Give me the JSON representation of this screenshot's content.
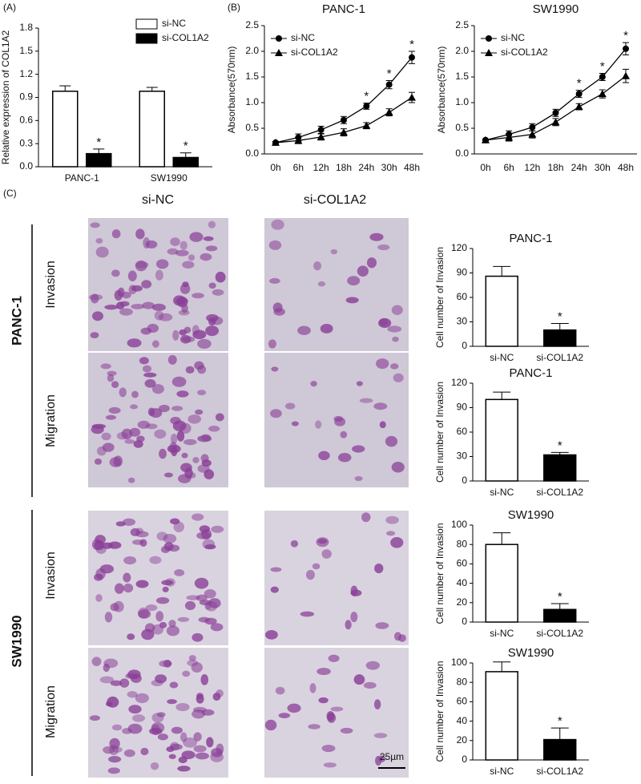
{
  "panel_labels": [
    "(A)",
    "(B)",
    "(C)"
  ],
  "panel_c": {
    "columns": [
      "si-NC",
      "si-COL1A2"
    ],
    "groups": [
      {
        "label": "PANC-1",
        "rows": [
          "Invasion",
          "Migration"
        ]
      },
      {
        "label": "SW1990",
        "rows": [
          "Invasion",
          "Migration"
        ]
      }
    ],
    "scale_bar": "25µm"
  },
  "chart_data": [
    {
      "type": "bar",
      "y_label": "Relative expression of COL1A2",
      "categories": [
        "PANC-1",
        "SW1990"
      ],
      "series": [
        {
          "name": "si-NC",
          "color": "#ffffff",
          "values": [
            0.98,
            0.98
          ],
          "errors": [
            0.07,
            0.05
          ],
          "annotations": [
            null,
            null
          ]
        },
        {
          "name": "si-COL1A2",
          "color": "#000000",
          "values": [
            0.17,
            0.12
          ],
          "errors": [
            0.06,
            0.06
          ],
          "annotations": [
            "*",
            "*"
          ]
        }
      ],
      "ylim": [
        0,
        1.8
      ],
      "yticks": [
        {
          "value": 0,
          "label": "0.0"
        },
        0.3,
        0.6,
        0.9,
        1.2,
        1.5,
        1.8
      ],
      "legend": "upper right"
    },
    {
      "type": "line",
      "title": "PANC-1",
      "y_label": "Absorbance(570nm)",
      "categories": [
        "0h",
        "6h",
        "12h",
        "18h",
        "24h",
        "30h",
        "48h"
      ],
      "series": [
        {
          "name": "si-NC",
          "color": "#000000",
          "marker": "circle",
          "values": [
            0.22,
            0.32,
            0.47,
            0.66,
            0.93,
            1.35,
            1.88
          ],
          "errors": [
            0.02,
            0.07,
            0.07,
            0.07,
            0.06,
            0.08,
            0.12
          ],
          "annotations": [
            null,
            null,
            null,
            null,
            "*",
            "*",
            "*"
          ]
        },
        {
          "name": "si-COL1A2",
          "color": "#000000",
          "marker": "triangle",
          "values": [
            0.22,
            0.26,
            0.33,
            0.42,
            0.55,
            0.81,
            1.1
          ],
          "errors": [
            0.02,
            0.06,
            0.06,
            0.07,
            0.06,
            0.07,
            0.1
          ],
          "annotations": [
            null,
            null,
            null,
            null,
            null,
            null,
            null
          ]
        }
      ],
      "ylim": [
        0,
        2.5
      ],
      "yticks": [
        {
          "value": 0,
          "label": "0.0"
        },
        0.5,
        {
          "value": 1,
          "label": "1.0"
        },
        1.5,
        {
          "value": 2,
          "label": "2.0"
        },
        2.5
      ],
      "legend": "upper left"
    },
    {
      "type": "line",
      "title": "SW1990",
      "y_label": "Absorbance(570nm)",
      "categories": [
        "0h",
        "6h",
        "12h",
        "18h",
        "24h",
        "30h",
        "48h"
      ],
      "series": [
        {
          "name": "si-NC",
          "color": "#000000",
          "marker": "circle",
          "values": [
            0.27,
            0.38,
            0.52,
            0.8,
            1.17,
            1.5,
            2.05
          ],
          "errors": [
            0.02,
            0.07,
            0.07,
            0.07,
            0.07,
            0.07,
            0.12
          ],
          "annotations": [
            null,
            null,
            null,
            null,
            "*",
            "*",
            "*"
          ]
        },
        {
          "name": "si-COL1A2",
          "color": "#000000",
          "marker": "triangle",
          "values": [
            0.27,
            0.32,
            0.38,
            0.62,
            0.92,
            1.17,
            1.52
          ],
          "errors": [
            0.02,
            0.07,
            0.07,
            0.07,
            0.06,
            0.08,
            0.13
          ],
          "annotations": [
            null,
            null,
            null,
            null,
            null,
            null,
            null
          ]
        }
      ],
      "ylim": [
        0,
        2.5
      ],
      "yticks": [
        {
          "value": 0,
          "label": "0.0"
        },
        0.5,
        {
          "value": 1,
          "label": "1.0"
        },
        1.5,
        {
          "value": 2,
          "label": "2.0"
        },
        2.5
      ],
      "legend": "upper left"
    },
    {
      "type": "bar",
      "title": "PANC-1",
      "y_label": "Cell number of Invasion",
      "categories": [
        "si-NC",
        "si-COL1A2"
      ],
      "values": [
        86,
        20
      ],
      "errors": [
        12,
        8
      ],
      "colors": [
        "#ffffff",
        "#000000"
      ],
      "annotations": [
        null,
        "*"
      ],
      "ylim": [
        0,
        120
      ],
      "yticks": [
        0,
        30,
        60,
        90,
        120
      ]
    },
    {
      "type": "bar",
      "title": "PANC-1",
      "y_label": "Cell number of Invasion",
      "categories": [
        "si-NC",
        "si-COL1A2"
      ],
      "values": [
        100,
        32
      ],
      "errors": [
        9,
        3
      ],
      "colors": [
        "#ffffff",
        "#000000"
      ],
      "annotations": [
        null,
        "*"
      ],
      "ylim": [
        0,
        120
      ],
      "yticks": [
        0,
        30,
        60,
        90,
        120
      ]
    },
    {
      "type": "bar",
      "title": "SW1990",
      "y_label": "Cell number of Invasion",
      "categories": [
        "si-NC",
        "si-COL1A2"
      ],
      "values": [
        80,
        13
      ],
      "errors": [
        12,
        6
      ],
      "colors": [
        "#ffffff",
        "#000000"
      ],
      "annotations": [
        null,
        "*"
      ],
      "ylim": [
        0,
        100
      ],
      "yticks": [
        0,
        20,
        40,
        60,
        80,
        100
      ]
    },
    {
      "type": "bar",
      "title": "SW1990",
      "y_label": "Cell number of Invasion",
      "categories": [
        "si-NC",
        "si-COL1A2"
      ],
      "values": [
        91,
        21
      ],
      "errors": [
        10,
        12
      ],
      "colors": [
        "#ffffff",
        "#000000"
      ],
      "annotations": [
        null,
        "*"
      ],
      "ylim": [
        0,
        100
      ],
      "yticks": [
        0,
        20,
        40,
        60,
        80,
        100
      ]
    }
  ]
}
